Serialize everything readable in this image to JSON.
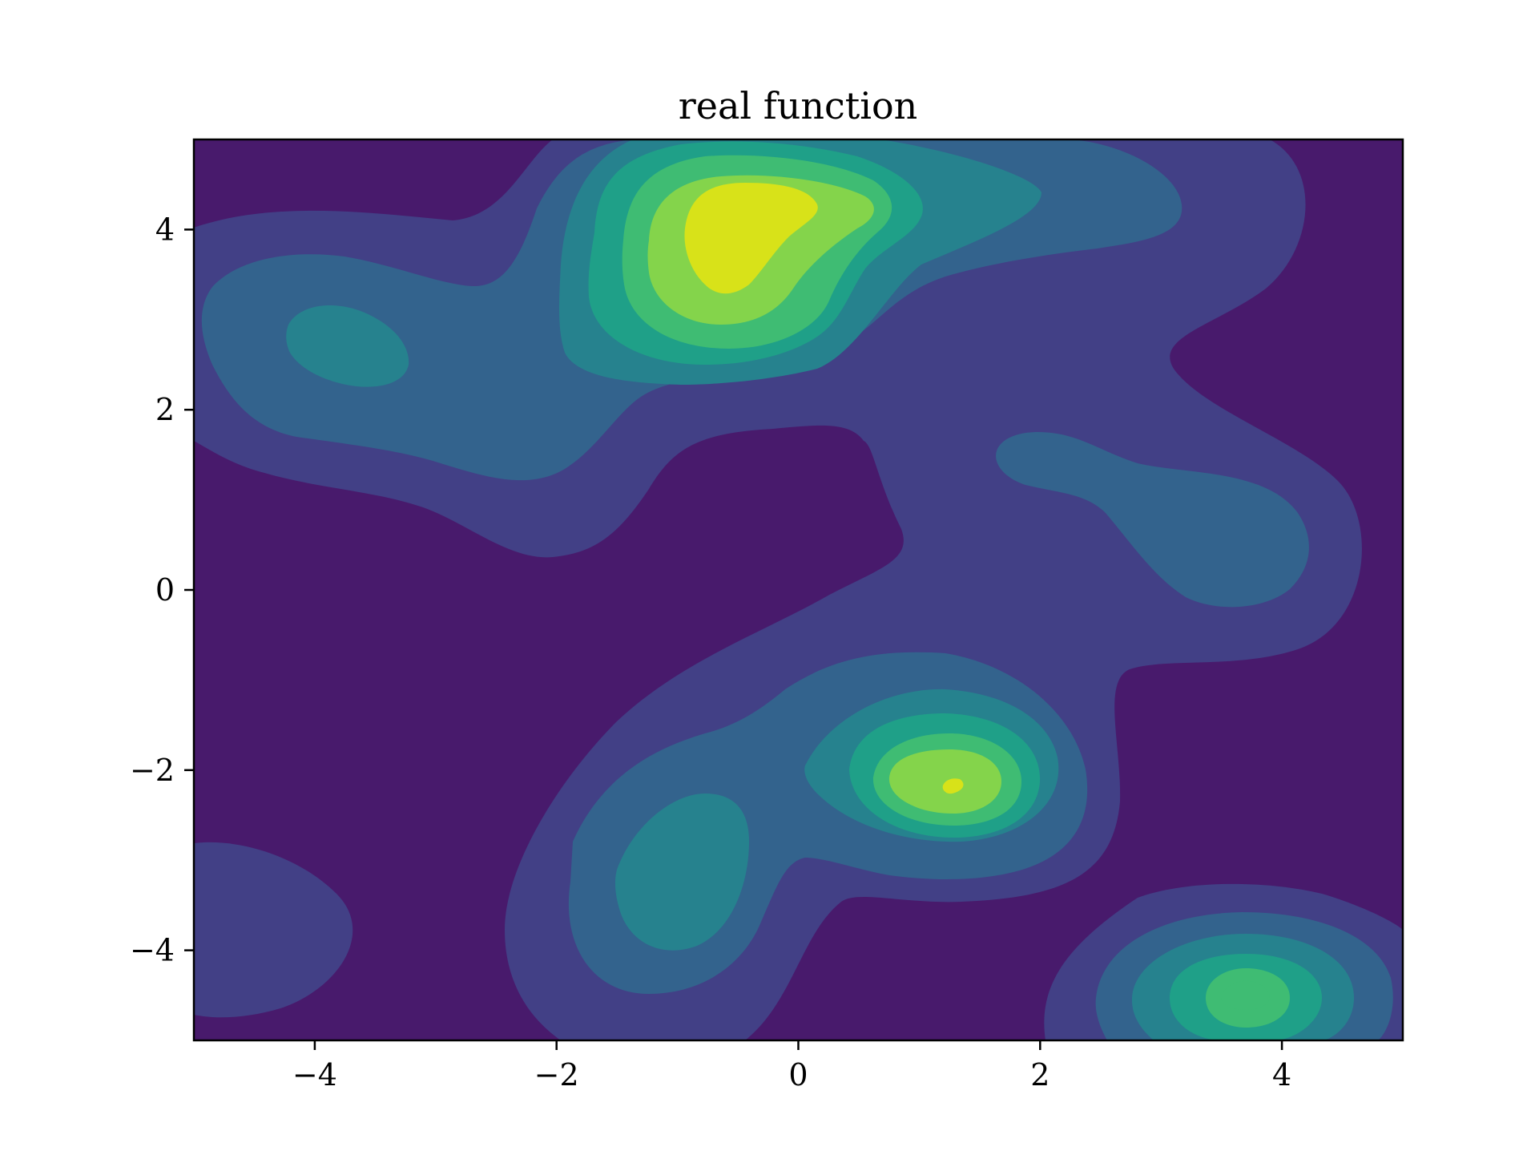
{
  "chart_data": {
    "type": "contourf",
    "title": "real function",
    "xlabel": "",
    "ylabel": "",
    "xlim": [
      -5,
      5
    ],
    "ylim": [
      -5,
      5
    ],
    "xticks": [
      -4,
      -2,
      0,
      2,
      4
    ],
    "yticks": [
      -4,
      -2,
      0,
      2,
      4
    ],
    "xtick_labels": [
      "−4",
      "−2",
      "0",
      "2",
      "4"
    ],
    "ytick_labels": [
      "−4",
      "−2",
      "0",
      "2",
      "4"
    ],
    "grid": false,
    "colormap": "viridis",
    "levels": 8,
    "level_colors": [
      "#481a6c",
      "#424086",
      "#33638d",
      "#26828e",
      "#1fa088",
      "#3fbc73",
      "#84d44b",
      "#d8e219"
    ],
    "peaks": [
      {
        "x": -0.5,
        "y": 4.1,
        "level": 7
      },
      {
        "x": 1.25,
        "y": -2.2,
        "level": 7
      },
      {
        "x": 3.75,
        "y": -4.55,
        "level": 5
      },
      {
        "x": -3.6,
        "y": 2.7,
        "level": 3
      },
      {
        "x": -1.05,
        "y": -3.35,
        "level": 3
      },
      {
        "x": 3.3,
        "y": 0.75,
        "level": 2
      },
      {
        "x": -4.7,
        "y": -4.0,
        "level": 1
      }
    ]
  }
}
